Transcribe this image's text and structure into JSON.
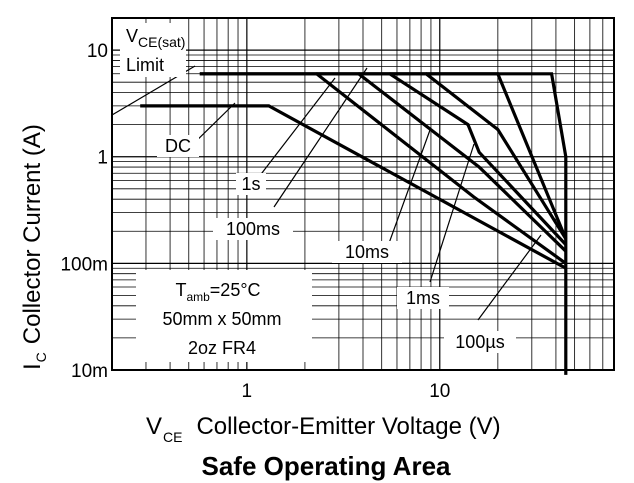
{
  "chart_data": {
    "type": "line",
    "title": "Safe Operating Area",
    "xlabel": {
      "main": "V",
      "sub": "CE",
      "rest": "Collector-Emitter Voltage (V)"
    },
    "ylabel": {
      "main": "I",
      "sub": "C",
      "rest": "Collector Current (A)"
    },
    "x_scale": "log",
    "y_scale": "log",
    "xlim": [
      0.2,
      80
    ],
    "ylim": [
      0.01,
      20
    ],
    "x_ticks": [
      {
        "value": 1,
        "label": "1"
      },
      {
        "value": 10,
        "label": "10"
      }
    ],
    "y_ticks": [
      {
        "value": 0.01,
        "label": "10m"
      },
      {
        "value": 0.1,
        "label": "100m"
      },
      {
        "value": 1,
        "label": "1"
      },
      {
        "value": 10,
        "label": "10"
      }
    ],
    "grid": true,
    "series": [
      {
        "name": "DC",
        "points": [
          [
            0.28,
            3
          ],
          [
            1.3,
            3
          ],
          [
            45,
            0.09
          ]
        ]
      },
      {
        "name": "1s",
        "points": [
          [
            0.57,
            6
          ],
          [
            2.3,
            6
          ],
          [
            15,
            0.42
          ],
          [
            45,
            0.1
          ]
        ]
      },
      {
        "name": "100ms",
        "points": [
          [
            2.3,
            6
          ],
          [
            3.8,
            6
          ],
          [
            16,
            0.8
          ],
          [
            45,
            0.13
          ]
        ]
      },
      {
        "name": "10ms",
        "points": [
          [
            3.8,
            6
          ],
          [
            5.5,
            6
          ],
          [
            14,
            2
          ],
          [
            16,
            1.1
          ],
          [
            45,
            0.15
          ]
        ]
      },
      {
        "name": "1ms",
        "points": [
          [
            5.5,
            6
          ],
          [
            8.5,
            6
          ],
          [
            20,
            1.8
          ],
          [
            45,
            0.17
          ]
        ]
      },
      {
        "name": "100µs",
        "points": [
          [
            8.5,
            6
          ],
          [
            20,
            6
          ],
          [
            45,
            0.17
          ]
        ]
      },
      {
        "name": "Limit",
        "points": [
          [
            0.57,
            6
          ],
          [
            38,
            6
          ],
          [
            45,
            1
          ],
          [
            45,
            0.009
          ]
        ]
      }
    ],
    "annotations": [
      {
        "type": "rsat",
        "main": "V",
        "sub": "CE(sat)",
        "line2": "Limit"
      },
      {
        "type": "label",
        "text": "DC"
      },
      {
        "type": "label",
        "text": "1s"
      },
      {
        "type": "label",
        "text": "100ms"
      },
      {
        "type": "label",
        "text": "10ms"
      },
      {
        "type": "label",
        "text": "1ms"
      },
      {
        "type": "label",
        "text": "100µs"
      }
    ],
    "conditions": {
      "tamb_main": "T",
      "tamb_sub": "amb",
      "tamb_rest": "=25°C",
      "line2": "50mm x 50mm",
      "line3": "2oz FR4"
    }
  }
}
